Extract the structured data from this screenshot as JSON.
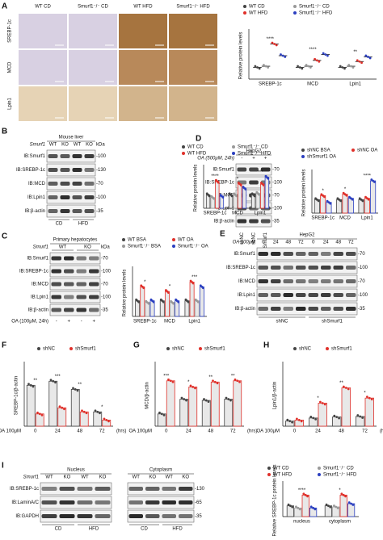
{
  "panel_labels": [
    "A",
    "B",
    "C",
    "D",
    "E",
    "F",
    "G",
    "H",
    "I"
  ],
  "histology": {
    "columns": [
      "WT CD",
      "Smurf1⁻/⁻ CD",
      "WT HFD",
      "Smurf1⁻/⁻ HFD"
    ],
    "rows": [
      "SREBP-1c",
      "MCD",
      "Lpin1"
    ]
  },
  "blots": [
    {
      "title": "Mouse liver",
      "top_label": "Smurf1",
      "top_lanes": [
        "WT",
        "KO",
        "WT",
        "KO"
      ],
      "rows": [
        "IB:Smurf1",
        "IB:SREBP-1c",
        "IB:MCD",
        "IB:Lpin1",
        "IB:β-actin"
      ],
      "kda_title": "kDa",
      "kda": [
        "-100",
        "-130",
        "-70",
        "-100",
        "-35"
      ],
      "bottom_groups": [
        "CD",
        "HFD"
      ]
    },
    {
      "title": "Primary hepatocytes",
      "top_label": "Smurf1",
      "top_groups": [
        "WT",
        "KO"
      ],
      "rows": [
        "IB:Smurf1",
        "IB:SREBP-1c",
        "IB:MCD",
        "IB:Lpin1",
        "IB:β-actin"
      ],
      "kda_title": "kDa",
      "kda": [
        "-70",
        "-100",
        "-70",
        "-100",
        "-35"
      ],
      "bottom_label": "OA (100μM, 24h)",
      "bottom_lanes": [
        "-",
        "+",
        "-",
        "+"
      ]
    },
    {
      "title": "HepG2",
      "top_label": "OA (500μM, 24h)",
      "top_lanes": [
        "-",
        "+",
        "+"
      ],
      "rows": [
        "IB:Smurf1",
        "IB:SREBP-1c",
        "IB:MCD",
        "IB:Lpin1",
        "IB:β-actin"
      ],
      "kda": [
        "-70",
        "-100",
        "-70",
        "-100",
        "-35"
      ],
      "bottom_lanes": [
        "shNC",
        "shNC",
        "shSmurf1"
      ]
    },
    {
      "title": "HepG2",
      "top_label": "OA 100μM",
      "top_lanes": [
        "0",
        "24",
        "48",
        "72",
        "0",
        "24",
        "48",
        "72"
      ],
      "rows": [
        "IB:Smurf1",
        "IB:SREBP-1c",
        "IB:MCD",
        "IB:Lpin1",
        "IB:β-actin"
      ],
      "kda": [
        "-70",
        "-100",
        "-70",
        "-100",
        "-35"
      ],
      "bottom_groups": [
        "shNC",
        "shSmurf1"
      ]
    },
    {
      "title": "Nucleus",
      "top_label": "Smurf1",
      "top_lanes": [
        "WT",
        "KO",
        "WT",
        "KO"
      ],
      "rows": [
        "IB:SREBP-1c",
        "IB:LaminA/C",
        "IB:GAPDH"
      ],
      "bottom_groups": [
        "CD",
        "HFD"
      ]
    },
    {
      "title": "Cytoplasm",
      "top_lanes": [
        "WT",
        "KO",
        "WT",
        "KO"
      ],
      "rows": [],
      "kda": [
        "-130",
        "-65",
        "-35"
      ],
      "bottom_groups": [
        "CD",
        "HFD"
      ]
    }
  ],
  "chart_data": [
    {
      "type": "dot",
      "ylabel": "Relative protein levels",
      "categories": [
        "SREBP-1c",
        "MCD",
        "Lpin1"
      ],
      "ylim": [
        0,
        4
      ],
      "annotations": [
        "****",
        "****",
        "**"
      ],
      "series": [
        {
          "name": "WT CD",
          "color": "#444444",
          "values": [
            1,
            1,
            1
          ]
        },
        {
          "name": "Smurf1⁻/⁻ CD",
          "color": "#999999",
          "values": [
            1.1,
            1.1,
            1.1
          ]
        },
        {
          "name": "WT HFD",
          "color": "#e0302a",
          "values": [
            3,
            1.6,
            1.5
          ]
        },
        {
          "name": "Smurf1⁻/⁻ HFD",
          "color": "#2b3fc0",
          "values": [
            2,
            2.1,
            1.9
          ]
        }
      ]
    },
    {
      "type": "bar",
      "ylabel": "Relative protein levels",
      "categories": [
        "SREBP-1c",
        "MCD",
        "Lpin1"
      ],
      "ylim": [
        0,
        3
      ],
      "annotations": [
        "****",
        "*",
        "***"
      ],
      "series": [
        {
          "name": "WT CD",
          "color": "#444444",
          "values": [
            1,
            1,
            1
          ]
        },
        {
          "name": "Smurf1⁻/⁻ CD",
          "color": "#999999",
          "values": [
            0.8,
            1,
            1.1
          ]
        },
        {
          "name": "WT HFD",
          "color": "#e0302a",
          "values": [
            2,
            1.8,
            1.8
          ]
        },
        {
          "name": "Smurf1⁻/⁻ HFD",
          "color": "#2b3fc0",
          "values": [
            0.9,
            1.5,
            2.3
          ]
        }
      ]
    },
    {
      "type": "bar",
      "ylabel": "Relative protein levels",
      "categories": [
        "SREBP-1c",
        "MCD",
        "Lpin1"
      ],
      "ylim": [
        0,
        3
      ],
      "annotations": [
        "*",
        "*",
        "***"
      ],
      "series": [
        {
          "name": "WT BSA",
          "color": "#444444",
          "values": [
            1,
            1,
            1
          ]
        },
        {
          "name": "WT OA",
          "color": "#e0302a",
          "values": [
            1.9,
            1.6,
            2.2
          ]
        },
        {
          "name": "Smurf1⁻/⁻ BSA",
          "color": "#999999",
          "values": [
            0.9,
            0.9,
            1
          ]
        },
        {
          "name": "Smurf1⁻/⁻ OA",
          "color": "#2b3fc0",
          "values": [
            1,
            1,
            1.9
          ]
        }
      ]
    },
    {
      "type": "bar",
      "ylabel": "Relative protein levels",
      "categories": [
        "SREBP-1c",
        "MCD",
        "Lpin1"
      ],
      "ylim": [
        0,
        3
      ],
      "annotations": [
        "*",
        "*",
        "****"
      ],
      "series": [
        {
          "name": "shNC BSA",
          "color": "#444444",
          "values": [
            1,
            1,
            1
          ]
        },
        {
          "name": "shNC OA",
          "color": "#e0302a",
          "values": [
            1.3,
            1.4,
            1.1
          ]
        },
        {
          "name": "shSmurf1 OA",
          "color": "#2b3fc0",
          "values": [
            0.8,
            1.1,
            2.4
          ]
        }
      ]
    },
    {
      "type": "bar",
      "ylabel": "SREBP-1c/β-actin",
      "x_prefix": "OA 100μM",
      "x_unit": "(hrs)",
      "categories": [
        "0",
        "24",
        "48",
        "72"
      ],
      "ylim": [
        0,
        1.5
      ],
      "annotations": [
        "**",
        "***",
        "**",
        "*"
      ],
      "series": [
        {
          "name": "shNC",
          "color": "#444444",
          "values": [
            1,
            1.1,
            0.9,
            0.35
          ]
        },
        {
          "name": "shSmurf1",
          "color": "#e0302a",
          "values": [
            0.3,
            0.45,
            0.35,
            0.15
          ]
        }
      ]
    },
    {
      "type": "bar",
      "ylabel": "MCD/β-actin",
      "x_prefix": "OA 100μM",
      "x_unit": "(hrs)",
      "categories": [
        "0",
        "24",
        "48",
        "72"
      ],
      "ylim": [
        0,
        5
      ],
      "annotations": [
        "***",
        "*",
        "**",
        "**"
      ],
      "series": [
        {
          "name": "shNC",
          "color": "#444444",
          "values": [
            1,
            2.2,
            2.1,
            2.2
          ]
        },
        {
          "name": "shSmurf1",
          "color": "#e0302a",
          "values": [
            3.7,
            3.2,
            3.6,
            3.7
          ]
        }
      ]
    },
    {
      "type": "bar",
      "ylabel": "Lpin1/β-actin",
      "x_prefix": "OA 100μM",
      "x_unit": "(hrs)",
      "categories": [
        "0",
        "24",
        "48",
        "72"
      ],
      "ylim": [
        0,
        12
      ],
      "annotations": [
        null,
        "*",
        "**",
        "*"
      ],
      "series": [
        {
          "name": "shNC",
          "color": "#444444",
          "values": [
            1,
            1.6,
            1.8,
            1.9
          ]
        },
        {
          "name": "shSmurf1",
          "color": "#e0302a",
          "values": [
            1.2,
            4.5,
            7.5,
            5.5
          ]
        }
      ]
    },
    {
      "type": "bar",
      "ylabel": "Relative SREBP-1c protein levels",
      "categories": [
        "nucleus",
        "cytoplasm"
      ],
      "ylim": [
        0,
        3
      ],
      "annotations": [
        "****",
        "*"
      ],
      "series": [
        {
          "name": "WT CD",
          "color": "#444444",
          "values": [
            1,
            1
          ]
        },
        {
          "name": "Smurf1⁻/⁻ CD",
          "color": "#999999",
          "values": [
            0.8,
            0.9
          ]
        },
        {
          "name": "WT HFD",
          "color": "#e0302a",
          "values": [
            2,
            2
          ]
        },
        {
          "name": "Smurf1⁻/⁻ HFD",
          "color": "#2b3fc0",
          "values": [
            0.8,
            1.2
          ]
        }
      ]
    }
  ]
}
